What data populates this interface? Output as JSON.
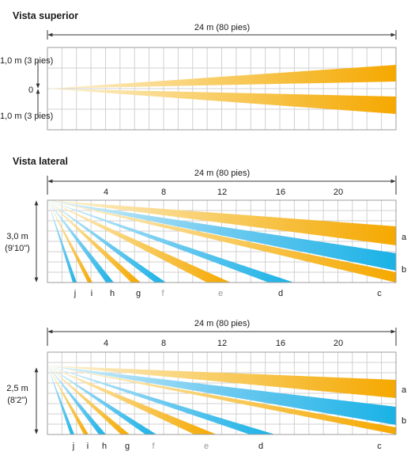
{
  "top_view": {
    "title": "Vista superior",
    "width_label": "24 m (80 pies)",
    "upper_label": "1,0 m (3 pies)",
    "center_label": "0",
    "lower_label": "1,0 m (3 pies)"
  },
  "side_view_1": {
    "title": "Vista lateral",
    "width_label": "24 m (80 pies)",
    "scale": [
      "4",
      "8",
      "12",
      "16",
      "20"
    ],
    "height_label": "3,0 m",
    "height_label_imperial": "(9'10\")",
    "zone_labels": [
      "j",
      "i",
      "h",
      "g",
      "f",
      "e",
      "d",
      "c"
    ],
    "beam_labels": [
      "a",
      "b"
    ]
  },
  "side_view_2": {
    "width_label": "24 m (80 pies)",
    "scale": [
      "4",
      "8",
      "12",
      "16",
      "20"
    ],
    "height_label": "2,5 m",
    "height_label_imperial": "(8'2\")",
    "zone_labels": [
      "j",
      "i",
      "h",
      "g",
      "f",
      "e",
      "d",
      "c"
    ],
    "beam_labels": [
      "a",
      "b"
    ]
  },
  "colors": {
    "orange": "#f5a800",
    "blue": "#1ab2e6",
    "light": "#fbe6b8",
    "grid": "#d0d0d0"
  }
}
